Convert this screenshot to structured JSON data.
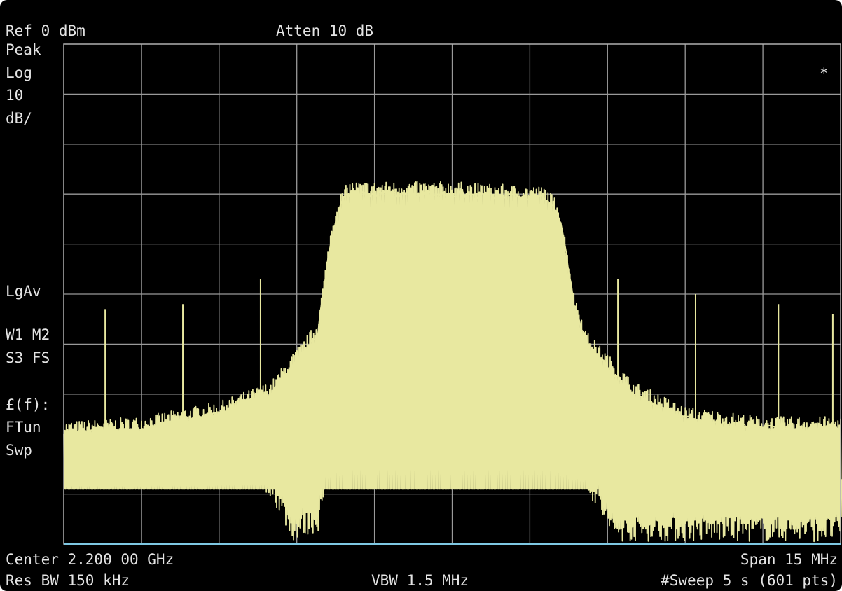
{
  "header": {
    "ref": "Ref 0 dBm",
    "atten": "Atten 10 dB",
    "marker": "*"
  },
  "side_labels": {
    "det": "Peak",
    "scale": "Log",
    "scale_value": "10",
    "scale_unit": "dB/",
    "avg": "LgAv",
    "traces_1": "W1 M2",
    "traces_2": "S3 FS",
    "mode": "£(f):",
    "tune": "FTun",
    "sweep": "Swp"
  },
  "footer": {
    "center": "Center 2.200 00 GHz",
    "span": "Span 15 MHz",
    "rbw": "Res BW 150 kHz",
    "vbw": "VBW 1.5 MHz",
    "sweep": "#Sweep 5 s (601 pts)"
  },
  "colors": {
    "trace": "#e8e8a0",
    "background": "#000000",
    "grid": "#9a9a9a",
    "baseline": "#7ec8e3"
  },
  "chart_data": {
    "type": "line",
    "grid": true,
    "x_unit": "MHz (offset from center)",
    "xlim": [
      -7.5,
      7.5
    ],
    "ylim": [
      -100,
      0
    ],
    "y_unit": "dBm",
    "points": 601,
    "series": [
      {
        "x": [
          -7.5,
          -6.0,
          -4.5,
          -3.5,
          -2.6,
          -2.35,
          -2.2,
          -2.0,
          0.0,
          1.8,
          2.05,
          2.2,
          2.35,
          2.6,
          3.5,
          4.5,
          6.0,
          7.5
        ],
        "values": [
          -78,
          -77,
          -74,
          -70,
          -58,
          -40,
          -33,
          -30,
          -30,
          -31,
          -34,
          -42,
          -52,
          -60,
          -70,
          -75,
          -77,
          -77
        ]
      },
      {
        "x": [
          -7.5,
          -6.0,
          -4.5,
          -3.5,
          -2.6,
          -2.35,
          -2.2,
          -2.0,
          0.0,
          1.8,
          2.05,
          2.2,
          2.35,
          2.6,
          3.5,
          4.5,
          6.0,
          7.5
        ],
        "values": [
          -88,
          -87,
          -85,
          -82,
          -72,
          -55,
          -48,
          -45,
          -46,
          -45,
          -48,
          -56,
          -66,
          -74,
          -84,
          -86,
          -87,
          -87
        ]
      },
      {
        "x": [
          -7.5,
          -4.5,
          -3.5,
          -3.1,
          -2.6,
          -2.3,
          -2.0,
          0.0,
          1.8,
          2.1,
          2.4,
          2.65,
          3.1,
          7.5
        ],
        "values": [
          -85,
          -85,
          -88,
          -97,
          -95,
          -80,
          -70,
          -74,
          -72,
          -72,
          -78,
          -88,
          -97,
          -97
        ]
      }
    ],
    "spurs": {
      "x": [
        -6.7,
        -5.2,
        -3.7,
        3.2,
        4.7,
        6.3,
        7.35
      ],
      "values": [
        -53,
        -52,
        -47,
        -47,
        -50,
        -52,
        -54
      ]
    }
  }
}
